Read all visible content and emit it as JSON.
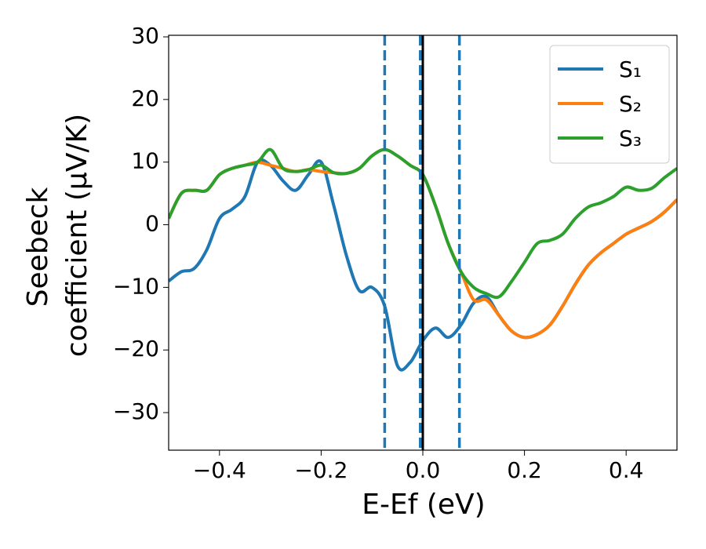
{
  "chart_data": {
    "type": "line",
    "x_label": "E-Ef (eV)",
    "y_label": [
      "Seebeck",
      "coefficient  (μV/K)"
    ],
    "x": [
      -0.5,
      -0.475,
      -0.45,
      -0.425,
      -0.4,
      -0.375,
      -0.35,
      -0.325,
      -0.3,
      -0.275,
      -0.25,
      -0.225,
      -0.2,
      -0.175,
      -0.15,
      -0.125,
      -0.1,
      -0.075,
      -0.05,
      -0.025,
      0,
      0.025,
      0.05,
      0.075,
      0.1,
      0.125,
      0.15,
      0.175,
      0.2,
      0.225,
      0.25,
      0.275,
      0.3,
      0.325,
      0.35,
      0.375,
      0.4,
      0.425,
      0.45,
      0.475,
      0.5
    ],
    "series": [
      {
        "name": "S₁",
        "color": "#1f77b4",
        "values": [
          -9,
          -7.5,
          -7,
          -4,
          1,
          2.5,
          4.5,
          10,
          9.5,
          7,
          5.5,
          8,
          10,
          3,
          -5,
          -10.5,
          -10,
          -13,
          -22.5,
          -22,
          -18.5,
          -16.5,
          -18,
          -16,
          -12.5,
          -11.5,
          -14.5,
          -17,
          -18,
          -17.5,
          -16,
          -13,
          -9.5,
          -6.5,
          -4.5,
          -3,
          -1.5,
          -0.5,
          0.5,
          2,
          4
        ]
      },
      {
        "name": "S₂",
        "color": "#ff7f0e",
        "values": [
          1,
          5,
          5.5,
          5.5,
          8,
          9,
          9.5,
          10,
          9.5,
          9,
          8.5,
          8.8,
          8.5,
          8.3,
          8.2,
          9,
          11,
          12,
          11,
          9.5,
          8,
          3,
          -3,
          -7.5,
          -12,
          -12,
          -14.5,
          -17,
          -18,
          -17.5,
          -16,
          -13,
          -9.5,
          -6.5,
          -4.5,
          -3,
          -1.5,
          -0.5,
          0.5,
          2,
          4
        ]
      },
      {
        "name": "S₃",
        "color": "#2ca02c",
        "values": [
          1,
          5,
          5.5,
          5.5,
          8,
          9,
          9.5,
          10,
          12,
          9,
          8.5,
          8.8,
          9.5,
          8.3,
          8.2,
          9,
          11,
          12,
          11,
          9.5,
          8,
          3,
          -3,
          -7.5,
          -10,
          -11,
          -11.5,
          -9,
          -6,
          -3,
          -2.5,
          -1.5,
          1,
          2.8,
          3.5,
          4.5,
          6,
          5.5,
          5.8,
          7.5,
          9
        ]
      }
    ],
    "vlines": [
      {
        "x": -0.075,
        "style": "dashed",
        "color": "#1f77b4"
      },
      {
        "x": -0.005,
        "style": "dashed",
        "color": "#1f77b4"
      },
      {
        "x": 0.072,
        "style": "dashed",
        "color": "#1f77b4"
      },
      {
        "x": 0,
        "style": "solid",
        "color": "#000000"
      }
    ],
    "xlim": [
      -0.5,
      0.5
    ],
    "ylim": [
      -36,
      30.25
    ],
    "xticks": [
      {
        "value": -0.4,
        "label": "−0.4"
      },
      {
        "value": -0.2,
        "label": "−0.2"
      },
      {
        "value": 0,
        "label": "0.0"
      },
      0.2,
      0.4
    ],
    "yticks": [
      {
        "value": -30,
        "label": "−30"
      },
      {
        "value": -20,
        "label": "−20"
      },
      {
        "value": -10,
        "label": "−10"
      },
      0,
      10,
      20,
      30
    ],
    "grid": false,
    "legend": "upper right"
  }
}
